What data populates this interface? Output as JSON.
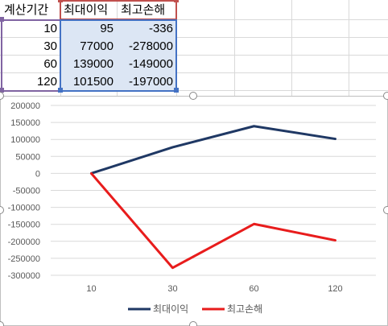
{
  "table": {
    "headers": [
      "계산기간",
      "최대이익",
      "최고손해"
    ],
    "rows": [
      {
        "period": "10",
        "max_profit": "95",
        "max_loss": "-336"
      },
      {
        "period": "30",
        "max_profit": "77000",
        "max_loss": "-278000"
      },
      {
        "period": "60",
        "max_profit": "139000",
        "max_loss": "-149000"
      },
      {
        "period": "120",
        "max_profit": "101500",
        "max_loss": "-197000"
      }
    ]
  },
  "colors": {
    "range_period": "#8064a2",
    "range_profit": "#4472c4",
    "range_loss": "#c0504d",
    "profit_fill": "#dce6f4",
    "line_profit": "#1f3864",
    "line_loss": "#e81c1c"
  },
  "chart_data": {
    "type": "line",
    "categories": [
      "10",
      "30",
      "60",
      "120"
    ],
    "series": [
      {
        "name": "최대이익",
        "values": [
          95,
          77000,
          139000,
          101500
        ],
        "color": "#1f3864"
      },
      {
        "name": "최고손해",
        "values": [
          -336,
          -278000,
          -149000,
          -197000
        ],
        "color": "#e81c1c"
      }
    ],
    "ylim": [
      -300000,
      200000
    ],
    "yticks": [
      "200000",
      "150000",
      "100000",
      "50000",
      "0",
      "-50000",
      "-100000",
      "-150000",
      "-200000",
      "-250000",
      "-300000"
    ],
    "grid": true,
    "legend_position": "bottom"
  }
}
